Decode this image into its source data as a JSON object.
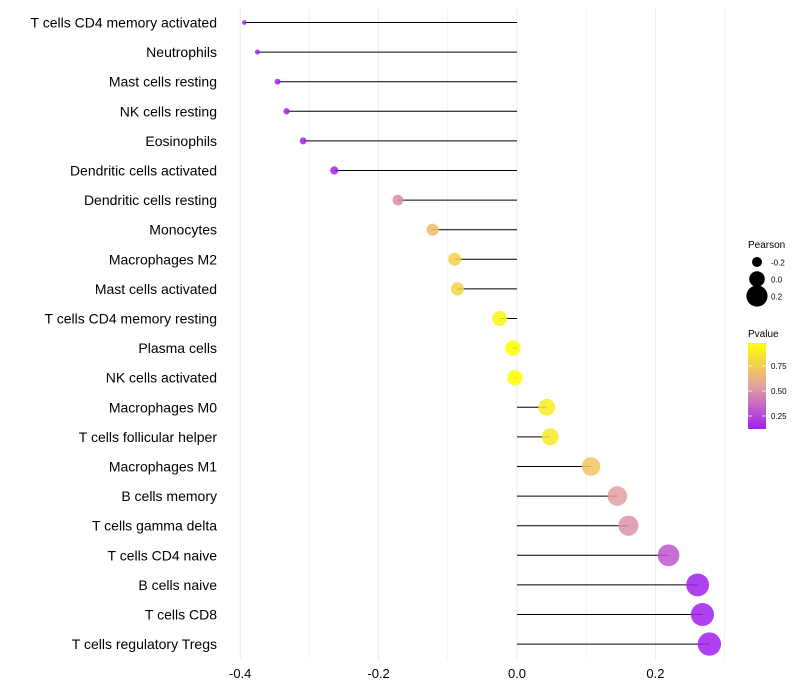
{
  "chart_data": {
    "type": "lollipop",
    "title": "",
    "xlabel": "",
    "ylabel": "",
    "xlim": [
      -0.415,
      0.31
    ],
    "x_ticks": [
      -0.4,
      -0.2,
      0.0,
      0.2
    ],
    "x_tick_labels": [
      "-0.4",
      "-0.2",
      "0.0",
      "0.2"
    ],
    "grid": true,
    "categories": [
      "T cells CD4 memory activated",
      "Neutrophils",
      "Mast cells resting",
      "NK cells resting",
      "Eosinophils",
      "Dendritic cells activated",
      "Dendritic cells resting",
      "Monocytes",
      "Macrophages M2",
      "Mast cells activated",
      "T cells CD4 memory resting",
      "Plasma cells",
      "NK cells activated",
      "Macrophages M0",
      "T cells follicular helper",
      "Macrophages M1",
      "B cells memory",
      "T cells gamma delta",
      "T cells CD4 naive",
      "B cells naive",
      "T cells CD8",
      "T cells regulatory  Tregs"
    ],
    "values": [
      -0.394,
      -0.375,
      -0.346,
      -0.333,
      -0.309,
      -0.264,
      -0.172,
      -0.122,
      -0.09,
      -0.086,
      -0.025,
      -0.006,
      -0.003,
      0.043,
      0.048,
      0.107,
      0.145,
      0.161,
      0.219,
      0.261,
      0.268,
      0.278
    ],
    "pvalues": [
      0.01,
      0.02,
      0.03,
      0.04,
      0.06,
      0.1,
      0.48,
      0.68,
      0.78,
      0.79,
      0.93,
      0.99,
      0.99,
      0.89,
      0.88,
      0.72,
      0.55,
      0.5,
      0.3,
      0.12,
      0.1,
      0.09
    ],
    "legends": {
      "size": {
        "title": "Pearson",
        "labels": [
          "-0.2",
          "0.0",
          "0.2"
        ],
        "values": [
          -0.2,
          0.0,
          0.2
        ]
      },
      "color": {
        "title": "Pvalue",
        "tick_labels": [
          "0.75",
          "0.50",
          "0.25"
        ],
        "tick_values": [
          0.75,
          0.5,
          0.25
        ],
        "range": [
          0.12,
          0.98
        ],
        "low_color": "#A020F0",
        "mid_color": "#E4A0A0",
        "high_color": "#FFFF00"
      },
      "placement": "right"
    },
    "stem_color": "#000000",
    "grid_color": "#EBEBEB"
  }
}
